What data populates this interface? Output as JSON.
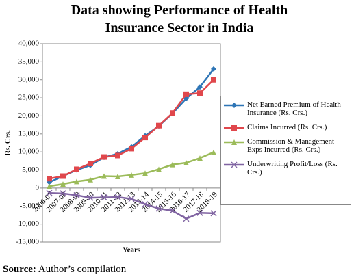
{
  "chart_data": {
    "type": "line",
    "title": "Data showing Performance of Health Insurance Sector in India",
    "x_label": "Years",
    "y_label": "Rs. Crs.",
    "categories": [
      "2006-07",
      "2007-08",
      "2008-09",
      "2009-10",
      "2010-11",
      "2011-12",
      "2012-13",
      "2013-14",
      "2014-15",
      "2015-16",
      "2016-17",
      "2017-18",
      "2018-19"
    ],
    "series": [
      {
        "name": "Net Earned Premium of Health Insurance (Rs. Crs.)",
        "color": "#2e75b6",
        "marker": "diamond",
        "values": [
          1600,
          3300,
          5000,
          6300,
          8500,
          9500,
          11400,
          14500,
          17200,
          20700,
          24800,
          28000,
          33000
        ]
      },
      {
        "name": "Claims Incurred (Rs. Crs.)",
        "color": "#e0474c",
        "marker": "square",
        "values": [
          2600,
          3300,
          5200,
          6800,
          8600,
          9000,
          10900,
          14000,
          17300,
          20800,
          26000,
          26300,
          30000
        ]
      },
      {
        "name": "Commission & Management Exps Incurred (Rs. Crs.)",
        "color": "#9bbb59",
        "marker": "triangle",
        "values": [
          500,
          1100,
          1800,
          2300,
          3300,
          3200,
          3600,
          4100,
          5200,
          6500,
          7000,
          8300,
          9900
        ]
      },
      {
        "name": "Underwriting Profit/Loss (Rs. Crs.)",
        "color": "#8064a2",
        "marker": "x",
        "values": [
          -1400,
          -1500,
          -2000,
          -2700,
          -2600,
          -2500,
          -3000,
          -4500,
          -5700,
          -6300,
          -8500,
          -6900,
          -7000
        ]
      }
    ],
    "ylim": [
      -15000,
      40000
    ],
    "yticks": [
      {
        "value": -15000,
        "label": "-15,000"
      },
      {
        "value": -10000,
        "label": "-10,000"
      },
      {
        "value": -5000,
        "label": "-5,000"
      },
      0,
      {
        "value": 5000,
        "label": "5,000"
      },
      {
        "value": 10000,
        "label": "10,000"
      },
      {
        "value": 15000,
        "label": "15,000"
      },
      {
        "value": 20000,
        "label": "20,000"
      },
      {
        "value": 25000,
        "label": "25,000"
      },
      {
        "value": 30000,
        "label": "30,000"
      },
      {
        "value": 35000,
        "label": "35,000"
      },
      {
        "value": 40000,
        "label": "40,000"
      }
    ],
    "grid": false,
    "legend": "right",
    "source": {
      "label": "Source:",
      "text": "Author’s compilation"
    }
  }
}
